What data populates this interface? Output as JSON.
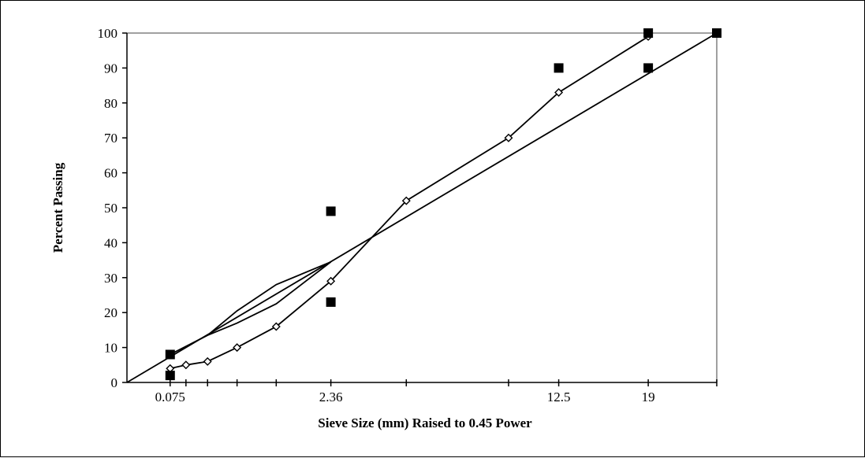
{
  "chart_data": {
    "type": "line",
    "xlabel": "Sieve Size (mm) Raised to 0.45 Power",
    "ylabel": "Percent Passing",
    "x_scale": "power 0.45",
    "xlim": [
      0,
      25
    ],
    "ylim": [
      0,
      100
    ],
    "y_ticks": [
      0,
      10,
      20,
      30,
      40,
      50,
      60,
      70,
      80,
      90,
      100
    ],
    "x_tick_positions": [
      0.075,
      0.15,
      0.3,
      0.6,
      1.18,
      2.36,
      4.75,
      9.5,
      12.5,
      19,
      25
    ],
    "x_tick_labels": [
      {
        "x": 0.075,
        "label": "0.075"
      },
      {
        "x": 2.36,
        "label": "2.36"
      },
      {
        "x": 12.5,
        "label": "12.5"
      },
      {
        "x": 19,
        "label": "19"
      }
    ],
    "grid": false,
    "legend": "none",
    "series": [
      {
        "style": "line-diamond",
        "points": [
          [
            0.075,
            4
          ],
          [
            0.15,
            5
          ],
          [
            0.3,
            6
          ],
          [
            0.6,
            10
          ],
          [
            1.18,
            16
          ],
          [
            2.36,
            29
          ],
          [
            4.75,
            52
          ],
          [
            9.5,
            70
          ],
          [
            12.5,
            83
          ],
          [
            19,
            99
          ]
        ]
      },
      {
        "style": "line",
        "points": [
          [
            0,
            0
          ],
          [
            25,
            100
          ]
        ]
      },
      {
        "style": "line",
        "points": [
          [
            0.3,
            13.5
          ],
          [
            0.6,
            20.5
          ],
          [
            1.18,
            28
          ],
          [
            2.36,
            34.5
          ]
        ]
      },
      {
        "style": "line",
        "points": [
          [
            0.3,
            13.5
          ],
          [
            0.6,
            17
          ],
          [
            1.18,
            22.5
          ],
          [
            2.36,
            34.5
          ]
        ]
      },
      {
        "style": "line",
        "points": [
          [
            0.075,
            8
          ],
          [
            0.3,
            13.5
          ]
        ]
      },
      {
        "style": "square-markers",
        "points": [
          [
            0.075,
            2
          ],
          [
            0.075,
            8
          ],
          [
            2.36,
            23
          ],
          [
            2.36,
            49
          ],
          [
            12.5,
            90
          ],
          [
            19,
            90
          ],
          [
            19,
            100
          ],
          [
            25,
            100
          ]
        ]
      }
    ],
    "colors": {
      "line": "#000000",
      "marker_fill": "#000000",
      "diamond_fill": "#ffffff"
    }
  }
}
